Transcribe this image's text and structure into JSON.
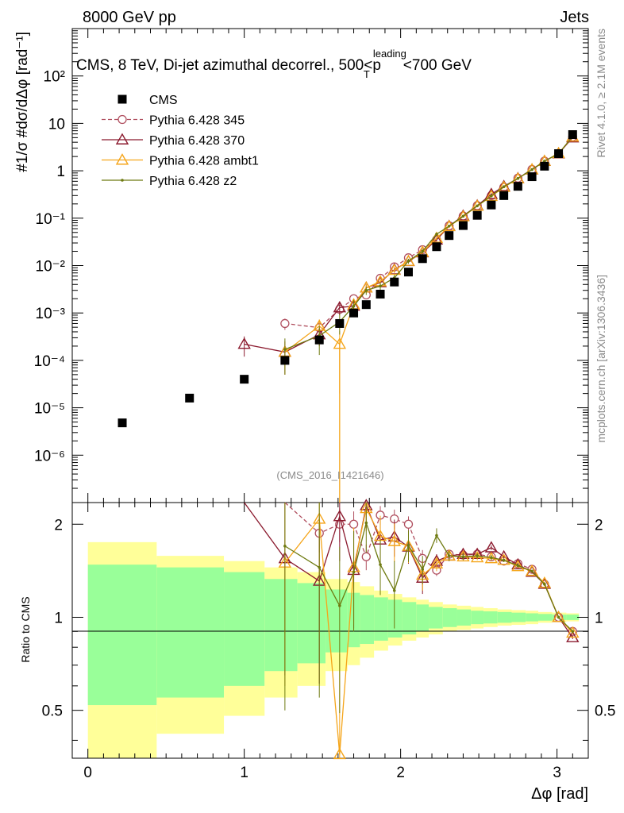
{
  "header": {
    "left_label": "8000 GeV pp",
    "right_label": "Jets"
  },
  "side_labels": {
    "rivet": "Rivet 4.1.0, ≥ 2.1M events",
    "mcplots": "mcplots.cern.ch [arXiv:1306.3436]"
  },
  "chart_data": {
    "type": "scatter",
    "title": "CMS, 8 TeV, Di-jet azimuthal decorrel., 500<p",
    "title_sup": "leading",
    "title_sub": "T",
    "title_tail": "<700 GeV",
    "analysis_tag": "(CMS_2016_I1421646)",
    "xlabel": "Δφ [rad]",
    "ylabel_main": "#1/σ #dσ/dΔφ [rad⁻¹]",
    "ylabel_ratio": "Ratio to CMS",
    "xlim": [
      -0.1,
      3.2
    ],
    "ylim_main": [
      1e-07,
      1000
    ],
    "yscale_main": "log",
    "ylim_ratio": [
      0.35,
      2.35
    ],
    "yscale_ratio": "log",
    "x_ticks": [
      "0",
      "1",
      "2",
      "3"
    ],
    "main_y_ticks": [
      "10⁻⁶",
      "10⁻⁵",
      "10⁻⁴",
      "10⁻³",
      "10⁻²",
      "10⁻¹",
      "1",
      "10",
      "10²"
    ],
    "ratio_y_ticks": [
      "0.5",
      "1",
      "2"
    ],
    "legend": {
      "position": "top-left"
    },
    "bin_edges": [
      0,
      0.44,
      0.87,
      1.13,
      1.34,
      1.52,
      1.66,
      1.74,
      1.83,
      1.92,
      2.01,
      2.1,
      2.18,
      2.27,
      2.36,
      2.45,
      2.53,
      2.62,
      2.71,
      2.8,
      2.88,
      2.97,
      3.06,
      3.14
    ],
    "band_green": [
      0.48,
      0.45,
      0.4,
      0.33,
      0.29,
      0.23,
      0.2,
      0.18,
      0.16,
      0.14,
      0.12,
      0.1,
      0.08,
      0.07,
      0.06,
      0.05,
      0.045,
      0.04,
      0.035,
      0.03,
      0.025,
      0.02,
      0.02
    ],
    "band_yellow": [
      0.75,
      0.58,
      0.52,
      0.45,
      0.4,
      0.33,
      0.3,
      0.26,
      0.22,
      0.19,
      0.16,
      0.14,
      0.12,
      0.1,
      0.09,
      0.08,
      0.07,
      0.06,
      0.055,
      0.05,
      0.04,
      0.035,
      0.03
    ],
    "cms": {
      "name": "CMS",
      "color": "#000000",
      "x": [
        0.22,
        0.65,
        1.0,
        1.26,
        1.48,
        1.61,
        1.7,
        1.78,
        1.87,
        1.96,
        2.05,
        2.14,
        2.23,
        2.31,
        2.4,
        2.49,
        2.58,
        2.66,
        2.75,
        2.84,
        2.92,
        3.01,
        3.1
      ],
      "y": [
        4.8e-06,
        1.6e-05,
        4e-05,
        0.0001,
        0.00027,
        0.0006,
        0.001,
        0.0015,
        0.0025,
        0.0045,
        0.0073,
        0.014,
        0.025,
        0.043,
        0.07,
        0.115,
        0.19,
        0.3,
        0.47,
        0.75,
        1.25,
        2.3,
        5.8
      ]
    },
    "series": [
      {
        "name": "Pythia 6.428 345",
        "color": "#b04f5f",
        "marker": "open-circle",
        "dash": "5,3",
        "x": [
          1.26,
          1.48,
          1.61,
          1.7,
          1.78,
          1.87,
          1.96,
          2.05,
          2.14,
          2.23,
          2.31,
          2.4,
          2.49,
          2.58,
          2.66,
          2.75,
          2.84,
          2.92,
          3.01,
          3.1
        ],
        "y": [
          0.0006,
          0.00049,
          0.0012,
          0.002,
          0.0024,
          0.0054,
          0.0094,
          0.0146,
          0.0216,
          0.035,
          0.069,
          0.111,
          0.184,
          0.3,
          0.45,
          0.7,
          1.07,
          1.6,
          2.3,
          5.2
        ],
        "yerr": [
          0.00016,
          0.00015,
          0.0003,
          0.0004,
          0.0004,
          0.0008,
          0.0012,
          0.0016,
          0.002,
          0.003,
          0.004,
          0.005,
          0.007,
          0.01,
          0.012,
          0.015,
          0.02,
          0.03,
          0.04,
          0.06
        ],
        "ratio": [
          5.9,
          1.87,
          2.0,
          2.0,
          1.57,
          2.14,
          2.08,
          2.0,
          1.55,
          1.42,
          1.6,
          1.59,
          1.6,
          1.57,
          1.52,
          1.49,
          1.43,
          1.28,
          1.0,
          0.9
        ],
        "ratio_err": [
          0.8,
          0.25,
          0.25,
          0.2,
          0.15,
          0.15,
          0.15,
          0.12,
          0.1,
          0.06,
          0.05,
          0.04,
          0.03,
          0.03,
          0.02,
          0.02,
          0.015,
          0.015,
          0.01,
          0.01
        ]
      },
      {
        "name": "Pythia 6.428 370",
        "color": "#8b1a2e",
        "marker": "open-triangle",
        "dash": "",
        "x": [
          1.0,
          1.26,
          1.48,
          1.61,
          1.7,
          1.78,
          1.87,
          1.96,
          2.05,
          2.14,
          2.23,
          2.31,
          2.4,
          2.49,
          2.58,
          2.66,
          2.75,
          2.84,
          2.92,
          3.01,
          3.1
        ],
        "y": [
          0.00022,
          0.00015,
          0.00035,
          0.0013,
          0.0014,
          0.0034,
          0.0044,
          0.0082,
          0.0123,
          0.0188,
          0.035,
          0.068,
          0.112,
          0.184,
          0.32,
          0.47,
          0.69,
          1.05,
          1.59,
          2.3,
          5.0
        ],
        "yerr": [
          0.0001,
          0.0001,
          0.00015,
          0.0004,
          0.0004,
          0.0006,
          0.0007,
          0.001,
          0.0014,
          0.002,
          0.003,
          0.004,
          0.005,
          0.007,
          0.01,
          0.012,
          0.015,
          0.02,
          0.03,
          0.04,
          0.06
        ],
        "ratio": [
          5.5,
          1.55,
          1.31,
          2.12,
          1.42,
          2.3,
          1.78,
          1.82,
          1.69,
          1.34,
          1.52,
          1.58,
          1.6,
          1.6,
          1.68,
          1.57,
          1.48,
          1.4,
          1.28,
          1.0,
          0.86
        ],
        "ratio_err": [
          1.0,
          0.9,
          0.7,
          0.6,
          0.5,
          0.35,
          0.3,
          0.25,
          0.2,
          0.15,
          0.08,
          0.06,
          0.04,
          0.03,
          0.03,
          0.02,
          0.02,
          0.015,
          0.015,
          0.01,
          0.01
        ]
      },
      {
        "name": "Pythia 6.428 ambt1",
        "color": "#f5a51a",
        "marker": "open-triangle",
        "dash": "",
        "x": [
          1.26,
          1.48,
          1.61,
          1.7,
          1.78,
          1.87,
          1.96,
          2.05,
          2.14,
          2.23,
          2.31,
          2.4,
          2.49,
          2.58,
          2.66,
          2.75,
          2.84,
          2.92,
          3.01,
          3.1
        ],
        "y": [
          0.00015,
          0.00053,
          0.00022,
          0.0015,
          0.0034,
          0.0046,
          0.008,
          0.0124,
          0.0192,
          0.038,
          0.067,
          0.108,
          0.18,
          0.29,
          0.45,
          0.68,
          1.06,
          1.6,
          2.33,
          5.2
        ],
        "yerr": [
          0.0001,
          0.0002,
          0.0002,
          0.0005,
          0.0006,
          0.0007,
          0.001,
          0.0014,
          0.002,
          0.003,
          0.004,
          0.005,
          0.007,
          0.01,
          0.012,
          0.015,
          0.02,
          0.03,
          0.04,
          0.06
        ],
        "ratio": [
          1.5,
          2.08,
          0.36,
          1.45,
          2.25,
          1.83,
          1.76,
          1.7,
          1.37,
          1.49,
          1.58,
          1.57,
          1.56,
          1.55,
          1.53,
          1.46,
          1.41,
          1.29,
          1.0,
          0.89
        ],
        "ratio_err": [
          0.9,
          0.7,
          0.4,
          0.5,
          0.35,
          0.3,
          0.25,
          0.2,
          0.15,
          0.08,
          0.06,
          0.04,
          0.03,
          0.03,
          0.02,
          0.02,
          0.015,
          0.015,
          0.01,
          0.01
        ]
      },
      {
        "name": "Pythia 6.428 z2",
        "color": "#6e7a10",
        "marker": "dot",
        "dash": "",
        "x": [
          1.26,
          1.48,
          1.61,
          1.7,
          1.78,
          1.87,
          1.96,
          2.05,
          2.14,
          2.23,
          2.31,
          2.4,
          2.49,
          2.58,
          2.66,
          2.75,
          2.84,
          2.92,
          3.01,
          3.1
        ],
        "y": [
          0.00017,
          0.00033,
          0.00065,
          0.0014,
          0.003,
          0.0037,
          0.0055,
          0.0125,
          0.02,
          0.046,
          0.068,
          0.11,
          0.182,
          0.295,
          0.46,
          0.69,
          1.06,
          1.6,
          2.3,
          5.3
        ],
        "yerr": [
          0.00012,
          0.0002,
          0.0003,
          0.0005,
          0.0006,
          0.0007,
          0.0009,
          0.0014,
          0.002,
          0.003,
          0.004,
          0.005,
          0.007,
          0.01,
          0.012,
          0.015,
          0.02,
          0.03,
          0.04,
          0.06
        ],
        "ratio": [
          1.7,
          1.45,
          1.09,
          1.4,
          2.02,
          1.48,
          1.22,
          1.71,
          1.43,
          1.84,
          1.58,
          1.57,
          1.58,
          1.56,
          1.53,
          1.47,
          1.41,
          1.28,
          1.0,
          0.9
        ],
        "ratio_err": [
          1.2,
          0.9,
          0.6,
          0.5,
          0.4,
          0.3,
          0.3,
          0.2,
          0.15,
          0.1,
          0.06,
          0.04,
          0.03,
          0.03,
          0.02,
          0.02,
          0.015,
          0.015,
          0.01,
          0.01
        ]
      }
    ]
  }
}
